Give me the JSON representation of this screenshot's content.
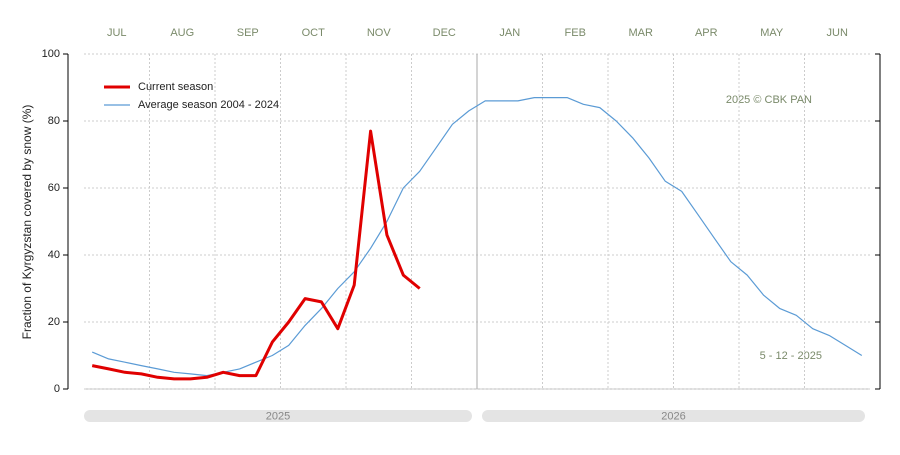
{
  "chart_data": {
    "type": "line",
    "y_label": "Fraction of  Kyrgyzstan  covered by snow (%)",
    "categories": [
      "JUL",
      "AUG",
      "SEP",
      "OCT",
      "NOV",
      "DEC",
      "JAN",
      "FEB",
      "MAR",
      "APR",
      "MAY",
      "JUN"
    ],
    "years": [
      "2025",
      "2026"
    ],
    "annotations": [
      "2025  © CBK PAN",
      "5 - 12 - 2025"
    ],
    "series": [
      {
        "name": "Current season",
        "color": "#e00000",
        "values": [
          [
            7,
            6,
            5,
            4.5
          ],
          [
            3.5,
            3,
            3,
            3.5
          ],
          [
            5,
            4,
            4,
            14
          ],
          [
            20,
            27,
            26,
            18
          ],
          [
            31,
            77,
            46,
            34
          ],
          [
            30
          ],
          null,
          null,
          null,
          null,
          null,
          null
        ]
      },
      {
        "name": "Average season 2004 - 2024",
        "color": "#5b9bd5",
        "values": [
          [
            11,
            9,
            8,
            7
          ],
          [
            6,
            5,
            4.5,
            4
          ],
          [
            5,
            6,
            8,
            10
          ],
          [
            13,
            19,
            24,
            30
          ],
          [
            35,
            42,
            50,
            60
          ],
          [
            65,
            72,
            79,
            83
          ],
          [
            86,
            86,
            86,
            87
          ],
          [
            87,
            87,
            85,
            84
          ],
          [
            80,
            75,
            69,
            62
          ],
          [
            59,
            52,
            45,
            38
          ],
          [
            34,
            28,
            24,
            22
          ],
          [
            18,
            16,
            13,
            10
          ]
        ]
      }
    ],
    "ylim": [
      0,
      100
    ],
    "yticks": [
      0,
      20,
      40,
      60,
      80,
      100
    ],
    "grid": true
  }
}
